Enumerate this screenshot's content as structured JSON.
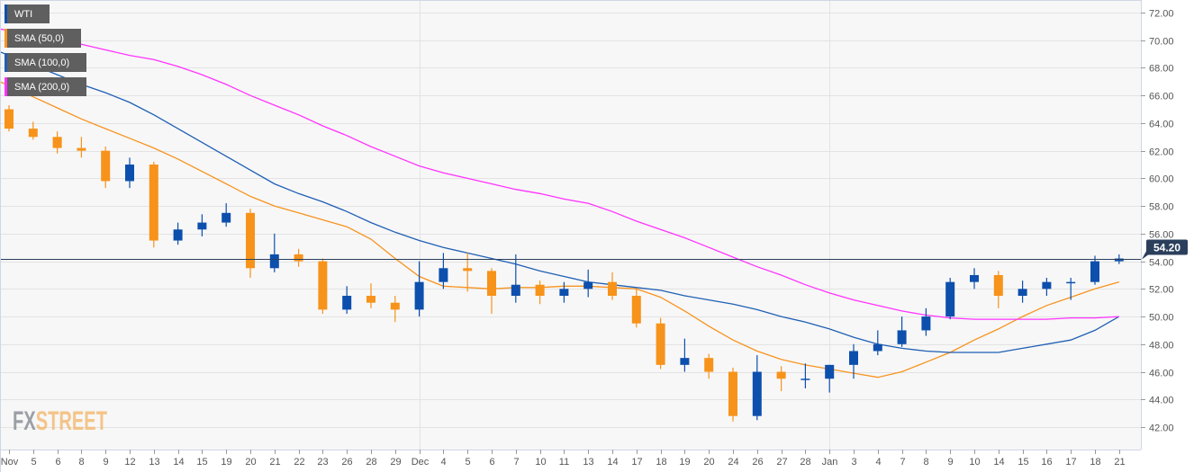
{
  "legend": [
    {
      "label": "WTI",
      "color": "#0d4fad"
    },
    {
      "label": "SMA (50,0)",
      "color": "#f7931e"
    },
    {
      "label": "SMA (100,0)",
      "color": "#1f5fb5"
    },
    {
      "label": "SMA (200,0)",
      "color": "#ff33ff"
    }
  ],
  "watermark": {
    "part1": "FX",
    "part2": "STREET"
  },
  "chart_data": {
    "type": "candlestick",
    "title": "WTI",
    "categories": [
      "Nov",
      "5",
      "6",
      "8",
      "9",
      "12",
      "13",
      "14",
      "15",
      "19",
      "20",
      "21",
      "22",
      "23",
      "26",
      "28",
      "29",
      "Dec",
      "4",
      "5",
      "6",
      "7",
      "10",
      "11",
      "13",
      "14",
      "17",
      "18",
      "19",
      "20",
      "24",
      "26",
      "27",
      "28",
      "Jan",
      "3",
      "4",
      "7",
      "8",
      "9",
      "10",
      "14",
      "15",
      "16",
      "17",
      "18",
      "21"
    ],
    "ohlc": [
      [
        65.0,
        65.3,
        63.4,
        63.6
      ],
      [
        63.6,
        64.1,
        62.8,
        63.0
      ],
      [
        63.0,
        63.4,
        61.8,
        62.2
      ],
      [
        62.2,
        63.0,
        61.5,
        62.0
      ],
      [
        62.0,
        62.3,
        59.3,
        59.8
      ],
      [
        59.8,
        61.5,
        59.3,
        61.0
      ],
      [
        61.0,
        61.2,
        55.0,
        55.5
      ],
      [
        55.5,
        56.8,
        55.2,
        56.3
      ],
      [
        56.3,
        57.4,
        55.8,
        56.8
      ],
      [
        56.8,
        58.2,
        56.5,
        57.5
      ],
      [
        57.5,
        57.8,
        52.8,
        53.5
      ],
      [
        53.5,
        56.0,
        53.2,
        54.5
      ],
      [
        54.5,
        54.9,
        53.6,
        54.0
      ],
      [
        54.0,
        54.2,
        50.2,
        50.5
      ],
      [
        50.5,
        52.2,
        50.2,
        51.5
      ],
      [
        51.5,
        52.4,
        50.6,
        51.0
      ],
      [
        51.0,
        51.5,
        49.6,
        50.5
      ],
      [
        50.5,
        54.0,
        50.0,
        52.5
      ],
      [
        52.5,
        54.6,
        52.0,
        53.5
      ],
      [
        53.5,
        54.6,
        51.8,
        53.3
      ],
      [
        53.3,
        53.5,
        50.2,
        51.5
      ],
      [
        51.5,
        54.5,
        51.0,
        52.3
      ],
      [
        52.3,
        52.6,
        50.9,
        51.5
      ],
      [
        51.5,
        52.5,
        51.0,
        52.0
      ],
      [
        52.0,
        53.4,
        51.4,
        52.5
      ],
      [
        52.5,
        53.2,
        51.2,
        51.5
      ],
      [
        51.5,
        52.0,
        49.2,
        49.5
      ],
      [
        49.5,
        49.9,
        46.2,
        46.5
      ],
      [
        46.5,
        48.4,
        46.0,
        47.0
      ],
      [
        47.0,
        47.3,
        45.5,
        46.0
      ],
      [
        46.0,
        46.3,
        42.4,
        42.8
      ],
      [
        42.8,
        47.2,
        42.5,
        46.0
      ],
      [
        46.0,
        46.4,
        44.6,
        45.5
      ],
      [
        45.5,
        46.6,
        44.8,
        45.5
      ],
      [
        45.5,
        46.5,
        44.5,
        46.5
      ],
      [
        46.5,
        48.0,
        45.5,
        47.5
      ],
      [
        47.5,
        49.0,
        47.2,
        48.0
      ],
      [
        48.0,
        50.0,
        47.8,
        49.0
      ],
      [
        49.0,
        50.6,
        48.6,
        50.0
      ],
      [
        50.0,
        52.8,
        49.8,
        52.5
      ],
      [
        52.5,
        53.5,
        52.0,
        53.0
      ],
      [
        53.0,
        53.3,
        50.6,
        51.5
      ],
      [
        51.5,
        52.6,
        51.0,
        52.0
      ],
      [
        52.0,
        52.8,
        51.5,
        52.5
      ],
      [
        52.5,
        52.8,
        51.2,
        52.5
      ],
      [
        52.5,
        54.4,
        52.3,
        54.0
      ],
      [
        54.0,
        54.5,
        53.8,
        54.2
      ]
    ],
    "series": [
      {
        "name": "SMA (50,0)",
        "color": "#f7931e",
        "values": [
          66.7,
          65.9,
          65.1,
          64.3,
          63.6,
          62.9,
          62.2,
          61.4,
          60.5,
          59.6,
          58.7,
          58.0,
          57.5,
          57.0,
          56.5,
          55.6,
          54.2,
          52.9,
          52.2,
          52.1,
          52.0,
          52.1,
          52.1,
          52.2,
          52.2,
          52.1,
          52.0,
          51.4,
          50.4,
          49.3,
          48.3,
          47.5,
          46.9,
          46.5,
          46.2,
          45.9,
          45.6,
          46.0,
          46.7,
          47.4,
          48.3,
          49.1,
          50.0,
          50.8,
          51.4,
          52.0,
          52.5
        ]
      },
      {
        "name": "SMA (100,0)",
        "color": "#1f5fb5",
        "values": [
          68.9,
          68.2,
          67.5,
          66.8,
          66.2,
          65.5,
          64.6,
          63.6,
          62.6,
          61.6,
          60.6,
          59.6,
          58.9,
          58.3,
          57.6,
          56.8,
          56.1,
          55.5,
          55.0,
          54.6,
          54.2,
          53.8,
          53.3,
          52.9,
          52.5,
          52.3,
          52.1,
          51.9,
          51.5,
          51.2,
          50.9,
          50.5,
          50.0,
          49.6,
          49.1,
          48.5,
          48.0,
          47.7,
          47.5,
          47.4,
          47.4,
          47.4,
          47.7,
          48.0,
          48.3,
          49.0,
          50.0
        ]
      },
      {
        "name": "SMA (200,0)",
        "color": "#ff33ff",
        "values": [
          70.7,
          70.4,
          70.0,
          69.7,
          69.3,
          68.9,
          68.6,
          68.1,
          67.5,
          66.8,
          66.0,
          65.3,
          64.6,
          63.8,
          63.1,
          62.3,
          61.6,
          60.9,
          60.4,
          60.0,
          59.6,
          59.2,
          58.9,
          58.5,
          58.2,
          57.6,
          56.9,
          56.3,
          55.7,
          55.0,
          54.3,
          53.6,
          53.0,
          52.3,
          51.7,
          51.2,
          50.8,
          50.4,
          50.1,
          49.9,
          49.8,
          49.8,
          49.8,
          49.8,
          49.9,
          49.9,
          50.0
        ]
      }
    ],
    "bull_color": "#0d4fad",
    "bear_color": "#f7931a",
    "last_price": 54.2,
    "last_price_label": "54.20",
    "yticks": [
      "42.00",
      "44.00",
      "46.00",
      "48.00",
      "50.00",
      "52.00",
      "54.00",
      "56.00",
      "58.00",
      "60.00",
      "62.00",
      "64.00",
      "66.00",
      "68.00",
      "70.00",
      "72.00"
    ],
    "ylim": [
      42,
      72
    ],
    "xlabel": "",
    "ylabel": "",
    "grid": true,
    "legend_position": "top-left"
  }
}
